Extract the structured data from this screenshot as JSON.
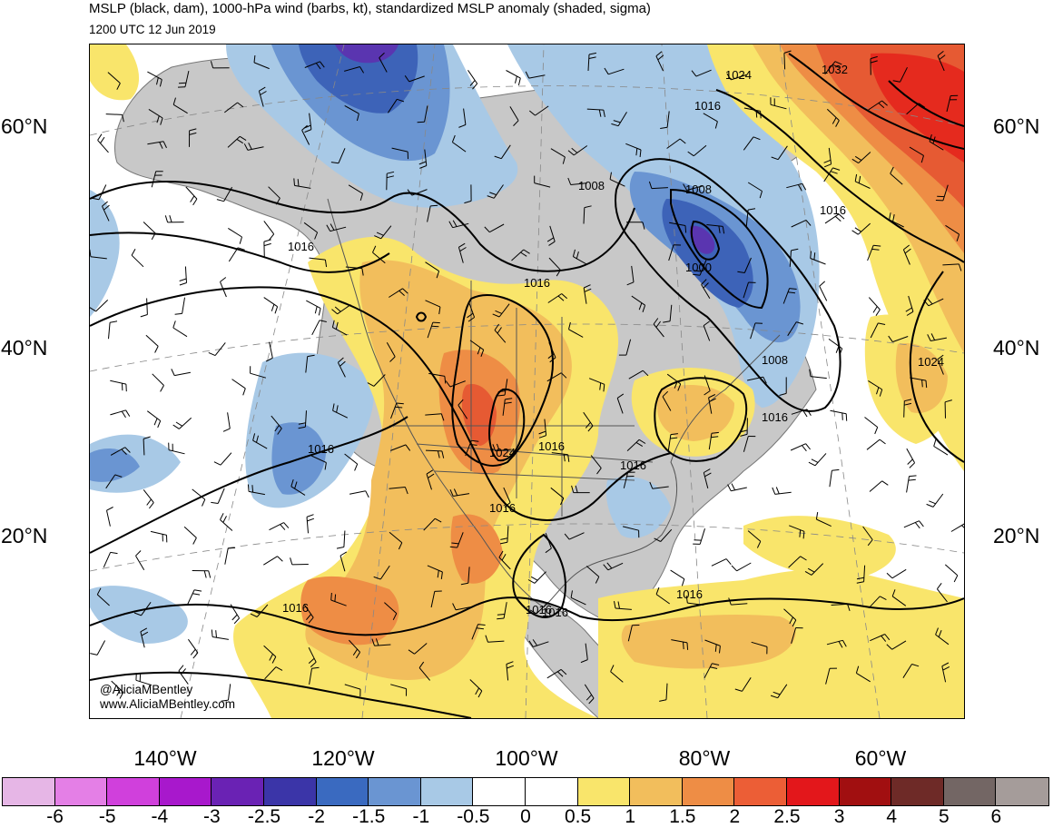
{
  "header": {
    "title": "MSLP (black, dam), 1000-hPa wind (barbs, kt), standardized MSLP anomaly (shaded, sigma)",
    "subtitle": "1200 UTC 12 Jun 2019"
  },
  "axes": {
    "lat_labels": [
      "60°N",
      "40°N",
      "20°N"
    ],
    "lon_labels": [
      "140°W",
      "120°W",
      "100°W",
      "80°W",
      "60°W"
    ]
  },
  "credits": {
    "handle": "@AliciaMBentley",
    "website": "www.AliciaMBentley.com"
  },
  "isobars": {
    "unit": "dam",
    "labels": [
      "1024",
      "1032",
      "1016",
      "1008",
      "1016",
      "1008",
      "1000",
      "1016",
      "1016",
      "1016",
      "1016",
      "1024",
      "1008",
      "1016",
      "1016",
      "1016",
      "1024",
      "1016",
      "1016",
      "1016",
      "1016"
    ]
  },
  "anomaly_colors": {
    "neg_strong": "#3d63b8",
    "neg_mid": "#6a95d2",
    "neg_weak": "#a8c9e6",
    "neg_core": "#5a35b0",
    "pos_weak": "#f9e56b",
    "pos_mid": "#f2be5c",
    "pos_strong": "#ee8d45",
    "pos_core": "#e65a33",
    "pos_max": "#e52a1e",
    "land_gray": "#c8c8c8"
  },
  "colorbar": {
    "colors": [
      "#e6b6e6",
      "#e47fe6",
      "#d040dc",
      "#a818cc",
      "#6a22b4",
      "#3b35a8",
      "#3a6ac0",
      "#6a95d2",
      "#a8c9e6",
      "#ffffff",
      "#ffffff",
      "#f9e56b",
      "#f2be5c",
      "#ee8d45",
      "#ec5e36",
      "#e3171b",
      "#a10f10",
      "#6e2a27",
      "#736664",
      "#a59c9a"
    ],
    "labels": [
      "-6",
      "-5",
      "-4",
      "-3",
      "-2.5",
      "-2",
      "-1.5",
      "-1",
      "-0.5",
      "0",
      "0.5",
      "1",
      "1.5",
      "2",
      "2.5",
      "3",
      "4",
      "5",
      "6"
    ]
  }
}
